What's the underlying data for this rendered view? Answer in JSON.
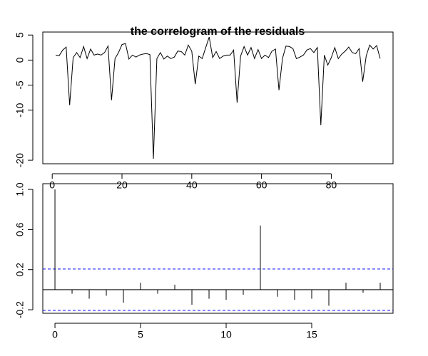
{
  "chart_data": [
    {
      "type": "line",
      "title": "the correlogram of the residuals",
      "color": "#000000",
      "x": [
        1,
        2,
        3,
        4,
        5,
        6,
        7,
        8,
        9,
        10,
        11,
        12,
        13,
        14,
        15,
        16,
        17,
        18,
        19,
        20,
        21,
        22,
        23,
        24,
        25,
        26,
        27,
        28,
        29,
        30,
        31,
        32,
        33,
        34,
        35,
        36,
        37,
        38,
        39,
        40,
        41,
        42,
        43,
        44,
        45,
        46,
        47,
        48,
        49,
        50,
        51,
        52,
        53,
        54,
        55,
        56,
        57,
        58,
        59,
        60,
        61,
        62,
        63,
        64,
        65,
        66,
        67,
        68,
        69,
        70,
        71,
        72,
        73,
        74,
        75,
        76,
        77,
        78,
        79,
        80,
        81,
        82,
        83,
        84,
        85,
        86,
        87,
        88,
        89,
        90,
        91,
        92,
        93,
        94
      ],
      "values": [
        1.0,
        0.9,
        2.0,
        2.6,
        -9.0,
        0.5,
        1.5,
        0.5,
        2.7,
        0.3,
        2.2,
        1.0,
        1.2,
        1.0,
        1.5,
        2.8,
        -8.0,
        0.3,
        1.5,
        3.1,
        3.3,
        0.2,
        1.0,
        0.6,
        1.0,
        1.2,
        1.3,
        1.1,
        -19.7,
        0.3,
        1.5,
        0.2,
        0.8,
        0.3,
        0.6,
        1.8,
        1.7,
        1.0,
        3.0,
        1.8,
        -4.8,
        0.8,
        0.3,
        2.5,
        4.6,
        0.5,
        1.7,
        0.3,
        0.8,
        1.0,
        1.0,
        2.0,
        -8.5,
        0.8,
        2.7,
        1.0,
        2.5,
        0.3,
        2.1,
        0.3,
        1.0,
        0.5,
        1.8,
        2.2,
        -6.0,
        0.3,
        2.8,
        2.7,
        2.3,
        0.3,
        0.6,
        1.0,
        2.0,
        2.3,
        1.5,
        2.5,
        -13.0,
        1.0,
        -1.0,
        0.5,
        2.5,
        0.3,
        1.2,
        1.8,
        2.6,
        1.5,
        1.3,
        2.3,
        -4.3,
        0.8,
        3.0,
        2.2,
        2.9,
        0.3
      ],
      "xlim": [
        -2.7,
        97.7
      ],
      "ylim": [
        -20.7,
        5.6
      ],
      "xticks": [
        0,
        20,
        40,
        60,
        80
      ],
      "yticks": [
        -20,
        -10,
        -5,
        0,
        5
      ]
    },
    {
      "type": "stem",
      "color": "#000000",
      "ci_color": "#0000ff",
      "x": [
        0,
        1,
        2,
        3,
        4,
        5,
        6,
        7,
        8,
        9,
        10,
        11,
        12,
        13,
        14,
        15,
        16,
        17,
        18,
        19
      ],
      "values": [
        1.0,
        -0.04,
        -0.09,
        -0.06,
        -0.13,
        0.07,
        -0.04,
        0.05,
        -0.15,
        -0.09,
        -0.1,
        -0.05,
        0.64,
        -0.07,
        -0.1,
        -0.09,
        -0.16,
        0.07,
        -0.03,
        0.07
      ],
      "ci": [
        -0.206,
        0.206
      ],
      "xlim": [
        -0.71,
        19.75
      ],
      "ylim": [
        -0.235,
        1.057
      ],
      "xticks": [
        0,
        5,
        10,
        15
      ],
      "yticks": [
        -0.2,
        0.2,
        0.6,
        {
          "value": 1,
          "label": "1.0"
        }
      ]
    }
  ]
}
